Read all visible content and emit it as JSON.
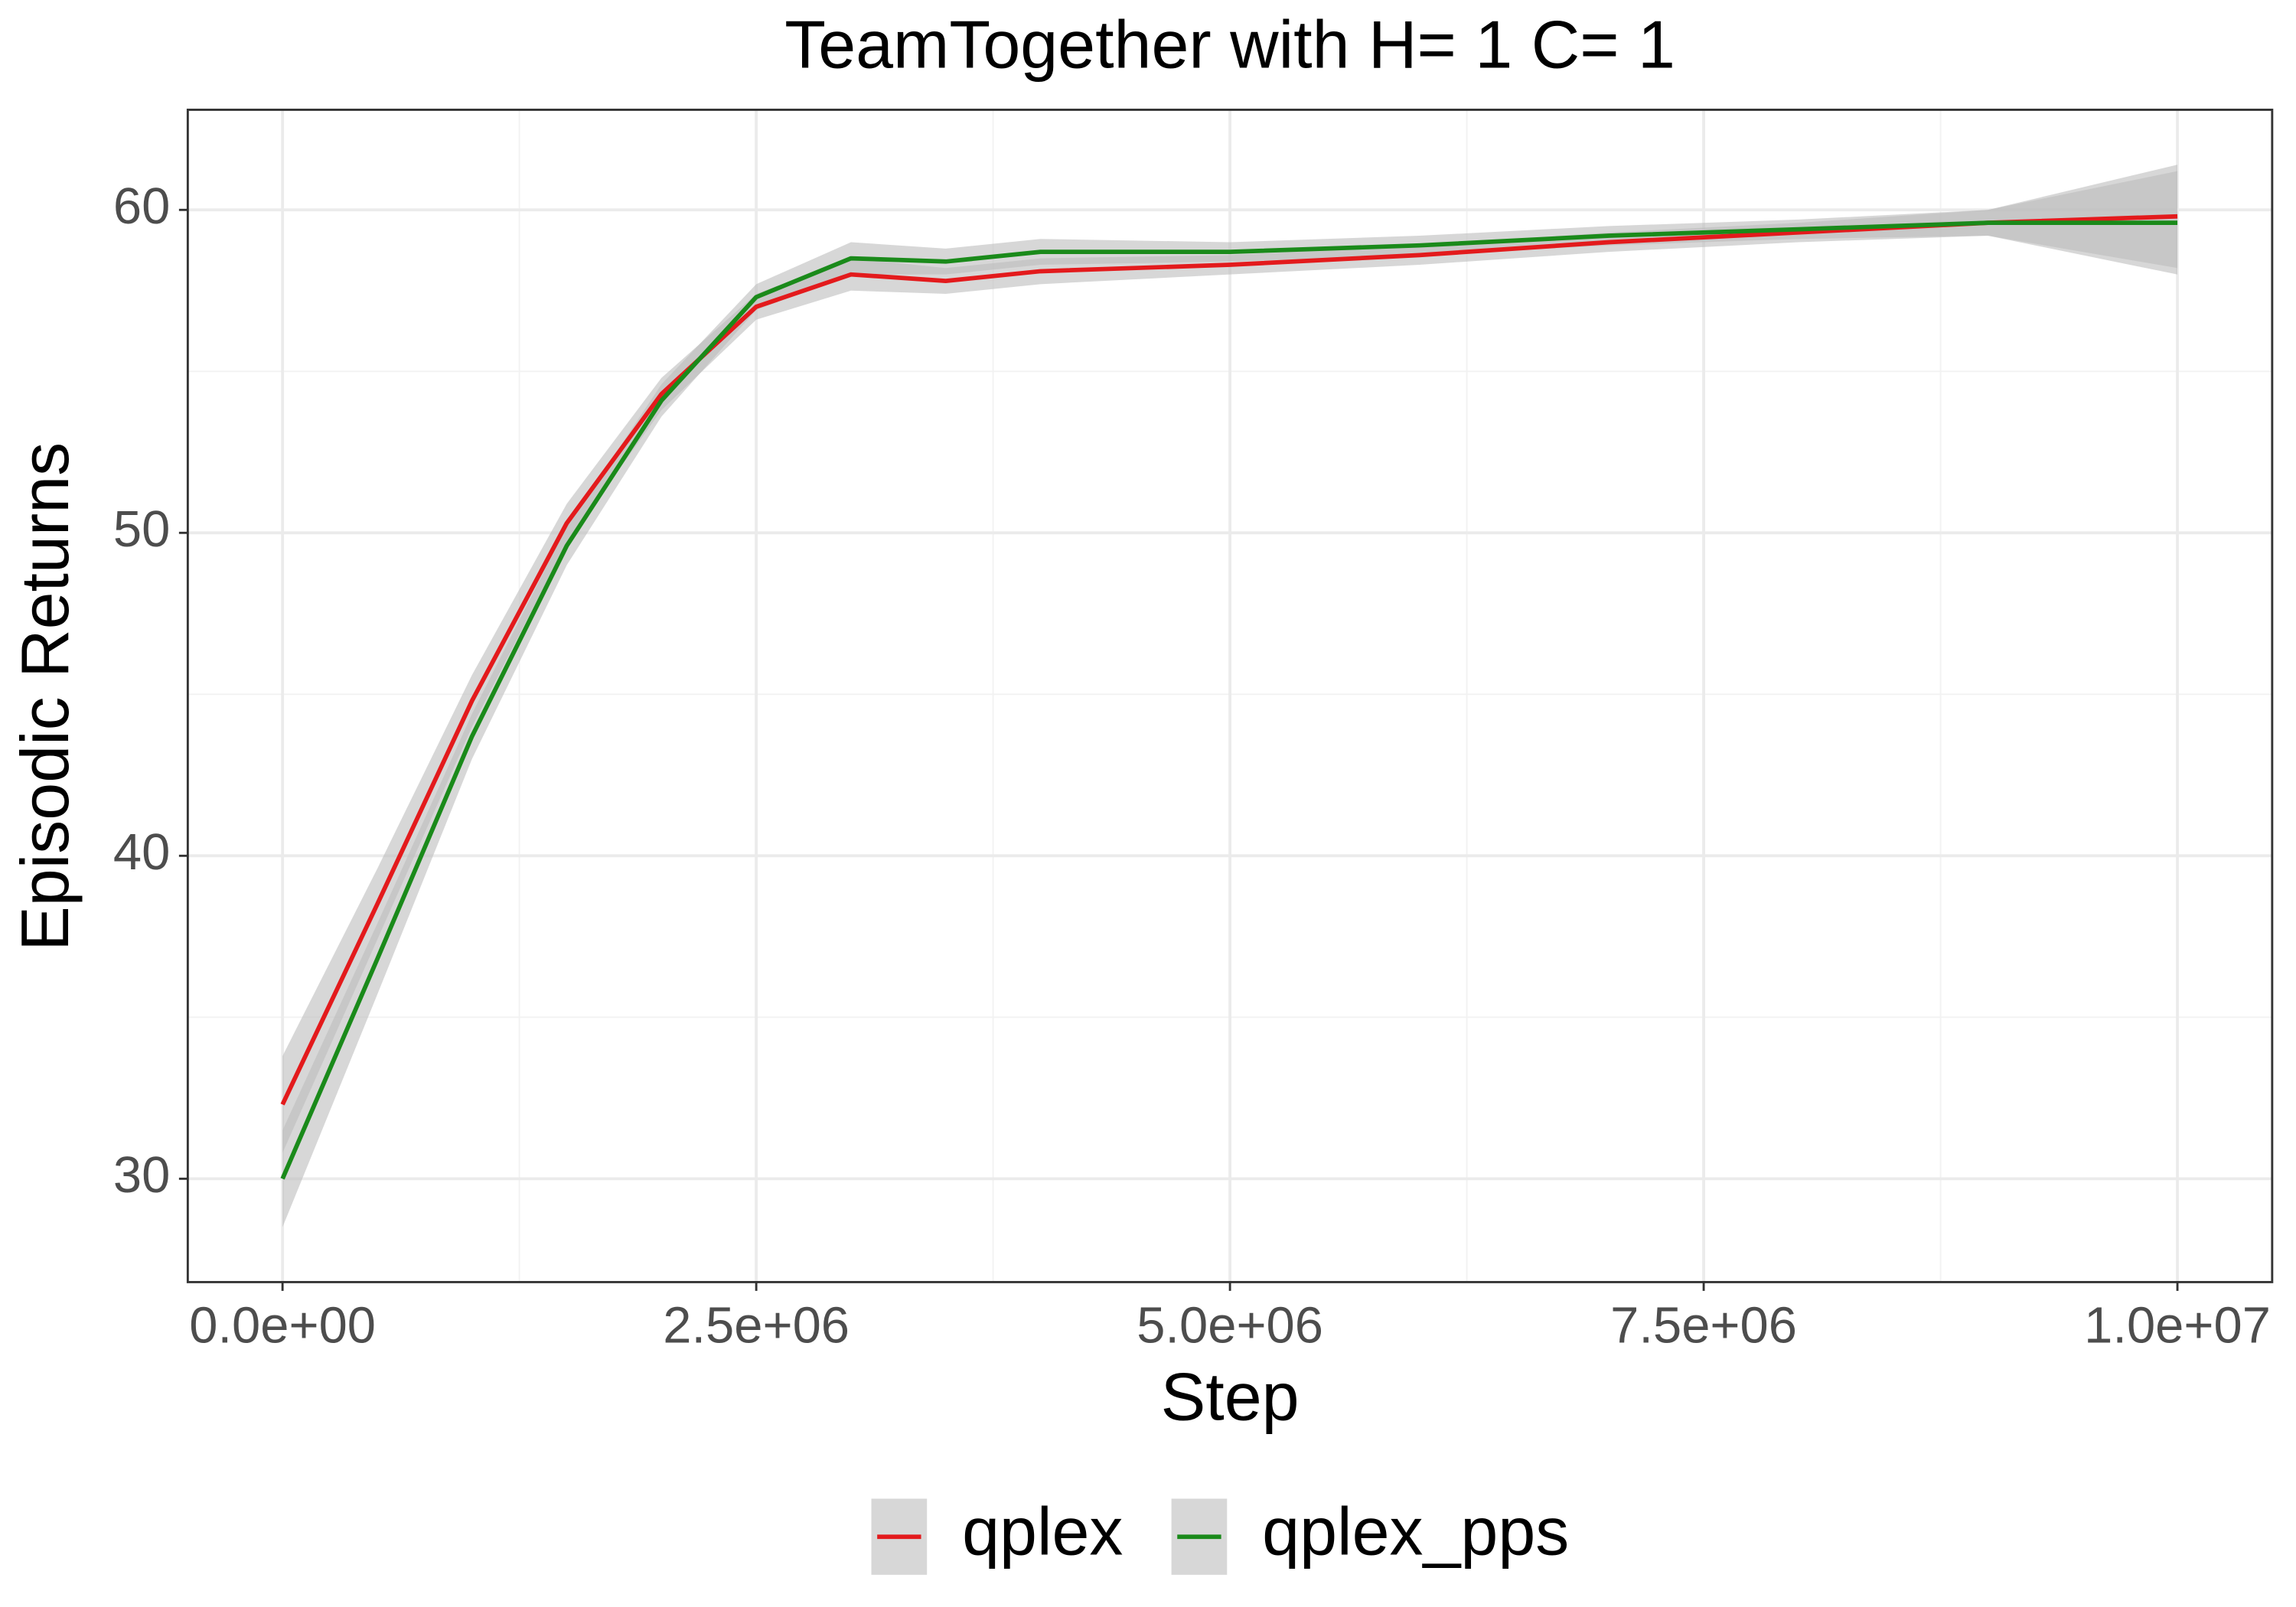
{
  "chart_data": {
    "type": "line",
    "title": "TeamTogether  with H= 1 C= 1",
    "x_label": "Step",
    "y_label": "Episodic Returns",
    "x": [
      0,
      500000,
      1000000,
      1500000,
      2000000,
      2500000,
      3000000,
      3500000,
      4000000,
      5000000,
      6000000,
      7000000,
      8000000,
      9000000,
      10000000
    ],
    "series": [
      {
        "name": "qplex",
        "color": "#e31a1c",
        "values": [
          32.3,
          38.5,
          44.8,
          50.3,
          54.3,
          57.0,
          58.0,
          57.8,
          58.1,
          58.3,
          58.6,
          59.0,
          59.3,
          59.6,
          59.8
        ],
        "lower": [
          30.8,
          37.4,
          44.0,
          49.7,
          53.8,
          56.6,
          57.5,
          57.4,
          57.7,
          58.0,
          58.3,
          58.7,
          59.0,
          59.2,
          58.2
        ],
        "upper": [
          33.8,
          39.6,
          45.6,
          50.9,
          54.8,
          57.4,
          58.5,
          58.2,
          58.5,
          58.6,
          58.9,
          59.3,
          59.6,
          60.0,
          61.4
        ]
      },
      {
        "name": "qplex_pps",
        "color": "#1a8a1a",
        "values": [
          30.0,
          36.8,
          43.7,
          49.6,
          54.1,
          57.3,
          58.5,
          58.4,
          58.7,
          58.7,
          58.9,
          59.2,
          59.4,
          59.6,
          59.6
        ],
        "lower": [
          28.5,
          35.7,
          43.0,
          49.0,
          53.6,
          56.9,
          58.0,
          58.0,
          58.3,
          58.4,
          58.6,
          58.9,
          59.1,
          59.2,
          58.0
        ],
        "upper": [
          31.5,
          37.9,
          44.4,
          50.2,
          54.6,
          57.7,
          59.0,
          58.8,
          59.1,
          59.0,
          59.2,
          59.5,
          59.7,
          60.0,
          61.2
        ]
      }
    ],
    "band_color": "#bdbdbd",
    "xlim": [
      -500000,
      10500000
    ],
    "ylim": [
      26.8,
      63.1
    ],
    "xticks": [
      {
        "value": 0,
        "label": "0.0e+00"
      },
      {
        "value": 2500000,
        "label": "2.5e+06"
      },
      {
        "value": 5000000,
        "label": "5.0e+06"
      },
      {
        "value": 7500000,
        "label": "7.5e+06"
      },
      {
        "value": 10000000,
        "label": "1.0e+07"
      }
    ],
    "yticks": [
      30,
      40,
      50,
      60
    ],
    "grid": true,
    "legend": "bottom"
  }
}
